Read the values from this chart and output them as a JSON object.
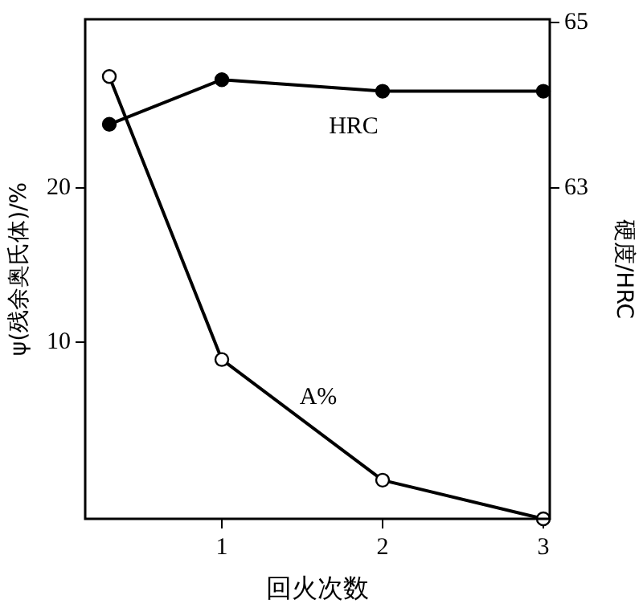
{
  "chart_data": {
    "type": "line",
    "xlabel": "回火次数",
    "ylabel": "ψ(残余奥氏体)/%",
    "y2label": "硬度/HRC",
    "xlim": [
      0.15,
      3.04
    ],
    "xticks": [
      1,
      2,
      3
    ],
    "ylim": [
      -1.4,
      30.9
    ],
    "yticks": [
      10,
      20
    ],
    "y2lim": [
      59,
      65.04
    ],
    "y2ticks": [
      63,
      65
    ],
    "grid": false,
    "legend": false,
    "marker": "circle",
    "line_style": "solid",
    "series": [
      {
        "name": "A%",
        "color": "#000000",
        "x": [
          0.3,
          1,
          2,
          3
        ],
        "values": [
          27.2,
          8.9,
          1.1,
          -1.4
        ]
      },
      {
        "name": "HRC",
        "color": "#000000",
        "axis": "y2",
        "x": [
          0.3,
          1,
          2,
          3
        ],
        "values": [
          63.77,
          64.31,
          64.17,
          64.17
        ]
      }
    ]
  }
}
